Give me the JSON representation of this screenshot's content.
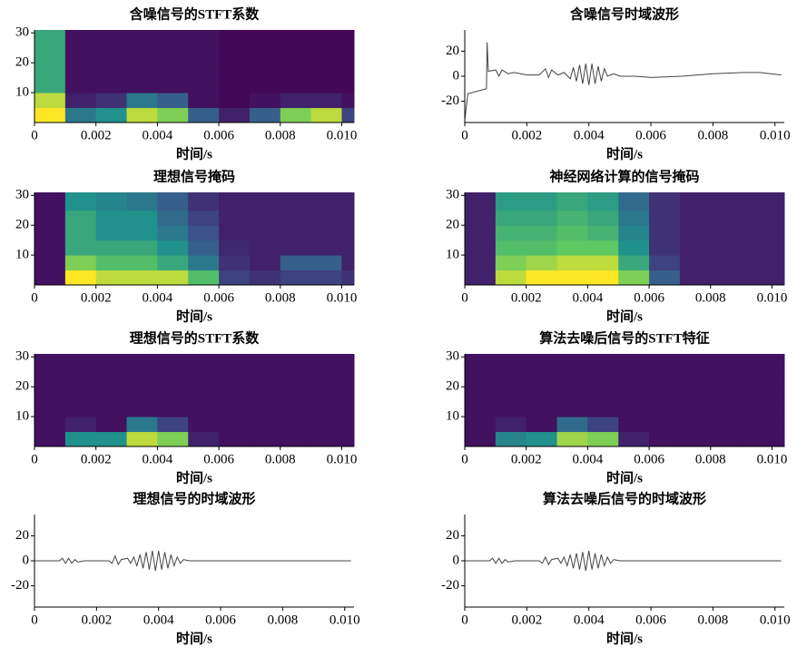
{
  "chart_data": [
    {
      "type": "heatmap",
      "title": "含噪信号的STFT系数",
      "xlabel": "时间/s",
      "colormap": "viridis",
      "xlim": [
        0,
        0.0104
      ],
      "ylim": [
        0,
        31
      ],
      "xticks": [
        0,
        0.002,
        0.004,
        0.006,
        0.008,
        {
          "value": 0.01,
          "label": "0.010"
        }
      ],
      "yticks": [
        10,
        20,
        30
      ],
      "xbins": [
        0,
        0.001,
        0.002,
        0.003,
        0.004,
        0.005,
        0.006,
        0.007,
        0.008,
        0.009,
        0.01,
        0.0104
      ],
      "ybins": [
        0,
        5,
        10,
        15,
        20,
        25,
        31
      ],
      "z": [
        [
          1,
          0.4,
          0.5,
          0.9,
          0.8,
          0.3,
          0.1,
          0.3,
          0.8,
          0.9,
          0.2
        ],
        [
          0.9,
          0.1,
          0.15,
          0.4,
          0.3,
          0.05,
          0.02,
          0.05,
          0.1,
          0.1,
          0.05
        ],
        [
          0.6,
          0.05,
          0.05,
          0.05,
          0.05,
          0.05,
          0.02,
          0.02,
          0.02,
          0.02,
          0.02
        ],
        [
          0.6,
          0.05,
          0.05,
          0.05,
          0.05,
          0.05,
          0.02,
          0.02,
          0.02,
          0.02,
          0.02
        ],
        [
          0.6,
          0.05,
          0.05,
          0.05,
          0.05,
          0.05,
          0.02,
          0.02,
          0.02,
          0.02,
          0.02
        ],
        [
          0.6,
          0.05,
          0.05,
          0.05,
          0.05,
          0.05,
          0.02,
          0.02,
          0.02,
          0.02,
          0.02
        ]
      ]
    },
    {
      "type": "line",
      "title": "含噪信号时域波形",
      "xlabel": "时间/s",
      "color": "#444444",
      "xlim": [
        0,
        0.0103
      ],
      "ylim": [
        -37,
        37
      ],
      "xticks": [
        0,
        0.002,
        0.004,
        0.006,
        0.008,
        {
          "value": 0.01,
          "label": "0.010"
        }
      ],
      "yticks": [
        -20,
        0,
        20
      ],
      "x": [
        0,
        0.0001,
        0.0007,
        0.00072,
        0.00076,
        0.001,
        0.0011,
        0.0012,
        0.0014,
        0.0016,
        0.002,
        0.0024,
        0.0026,
        0.0027,
        0.0028,
        0.003,
        0.0032,
        0.0034,
        0.0035,
        0.0036,
        0.0037,
        0.0038,
        0.0039,
        0.004,
        0.0041,
        0.0042,
        0.0043,
        0.0044,
        0.0045,
        0.0046,
        0.0048,
        0.005,
        0.0055,
        0.006,
        0.007,
        0.008,
        0.009,
        0.0095,
        0.0102
      ],
      "values": [
        -35,
        -14,
        -10,
        27,
        4,
        5,
        0,
        5,
        2,
        3,
        1,
        1,
        6,
        -1,
        5,
        1,
        3,
        -2,
        7,
        -4,
        9,
        -6,
        10,
        -7,
        10,
        -6,
        8,
        -4,
        6,
        0,
        2,
        0,
        0,
        -1,
        0,
        2,
        3,
        3,
        1
      ]
    },
    {
      "type": "heatmap",
      "title": "理想信号掩码",
      "xlabel": "时间/s",
      "colormap": "viridis",
      "xlim": [
        0,
        0.0104
      ],
      "ylim": [
        0,
        31
      ],
      "xticks": [
        0,
        0.002,
        0.004,
        0.006,
        0.008,
        {
          "value": 0.01,
          "label": "0.010"
        }
      ],
      "yticks": [
        10,
        20,
        30
      ],
      "xbins": [
        0,
        0.001,
        0.002,
        0.003,
        0.004,
        0.005,
        0.006,
        0.007,
        0.008,
        0.009,
        0.01,
        0.0104
      ],
      "ybins": [
        0,
        5,
        10,
        15,
        20,
        25,
        31
      ],
      "z": [
        [
          0.05,
          1,
          0.9,
          0.9,
          0.9,
          0.7,
          0.2,
          0.15,
          0.2,
          0.2,
          0.15
        ],
        [
          0.05,
          0.8,
          0.7,
          0.7,
          0.6,
          0.4,
          0.15,
          0.1,
          0.3,
          0.3,
          0.1
        ],
        [
          0.05,
          0.6,
          0.6,
          0.6,
          0.5,
          0.3,
          0.12,
          0.1,
          0.1,
          0.1,
          0.1
        ],
        [
          0.05,
          0.6,
          0.5,
          0.5,
          0.4,
          0.25,
          0.1,
          0.1,
          0.1,
          0.1,
          0.1
        ],
        [
          0.05,
          0.6,
          0.5,
          0.5,
          0.35,
          0.2,
          0.1,
          0.1,
          0.1,
          0.1,
          0.1
        ],
        [
          0.05,
          0.5,
          0.45,
          0.4,
          0.3,
          0.15,
          0.1,
          0.1,
          0.1,
          0.1,
          0.1
        ]
      ]
    },
    {
      "type": "heatmap",
      "title": "神经网络计算的信号掩码",
      "xlabel": "时间/s",
      "colormap": "viridis",
      "xlim": [
        0,
        0.0104
      ],
      "ylim": [
        0,
        31
      ],
      "xticks": [
        0,
        0.002,
        0.004,
        0.006,
        0.008,
        {
          "value": 0.01,
          "label": "0.010"
        }
      ],
      "yticks": [
        10,
        20,
        30
      ],
      "xbins": [
        0,
        0.001,
        0.002,
        0.003,
        0.004,
        0.005,
        0.006,
        0.007,
        0.008,
        0.009,
        0.01,
        0.0104
      ],
      "ybins": [
        0,
        5,
        10,
        15,
        20,
        25,
        31
      ],
      "z": [
        [
          0.1,
          0.9,
          1,
          1,
          1,
          0.8,
          0.3,
          0.1,
          0.1,
          0.1,
          0.1
        ],
        [
          0.1,
          0.8,
          0.85,
          0.9,
          0.9,
          0.6,
          0.2,
          0.1,
          0.1,
          0.1,
          0.1
        ],
        [
          0.1,
          0.7,
          0.7,
          0.75,
          0.75,
          0.5,
          0.15,
          0.1,
          0.1,
          0.1,
          0.1
        ],
        [
          0.1,
          0.65,
          0.65,
          0.7,
          0.65,
          0.45,
          0.15,
          0.1,
          0.1,
          0.1,
          0.1
        ],
        [
          0.1,
          0.6,
          0.6,
          0.65,
          0.6,
          0.4,
          0.15,
          0.1,
          0.1,
          0.1,
          0.1
        ],
        [
          0.1,
          0.55,
          0.55,
          0.6,
          0.55,
          0.35,
          0.15,
          0.1,
          0.1,
          0.1,
          0.1
        ]
      ]
    },
    {
      "type": "heatmap",
      "title": "理想信号的STFT系数",
      "xlabel": "时间/s",
      "colormap": "viridis",
      "xlim": [
        0,
        0.0104
      ],
      "ylim": [
        0,
        31
      ],
      "xticks": [
        0,
        0.002,
        0.004,
        0.006,
        0.008,
        {
          "value": 0.01,
          "label": "0.010"
        }
      ],
      "yticks": [
        10,
        20,
        30
      ],
      "xbins": [
        0,
        0.001,
        0.002,
        0.003,
        0.004,
        0.005,
        0.006,
        0.007,
        0.008,
        0.009,
        0.01,
        0.0104
      ],
      "ybins": [
        0,
        5,
        10,
        15,
        20,
        25,
        31
      ],
      "z": [
        [
          0.05,
          0.5,
          0.5,
          0.9,
          0.8,
          0.1,
          0.05,
          0.05,
          0.05,
          0.05,
          0.05
        ],
        [
          0.05,
          0.1,
          0.05,
          0.4,
          0.2,
          0.05,
          0.05,
          0.05,
          0.05,
          0.05,
          0.05
        ],
        [
          0.05,
          0.05,
          0.05,
          0.05,
          0.05,
          0.05,
          0.05,
          0.05,
          0.05,
          0.05,
          0.05
        ],
        [
          0.05,
          0.05,
          0.05,
          0.05,
          0.05,
          0.05,
          0.05,
          0.05,
          0.05,
          0.05,
          0.05
        ],
        [
          0.05,
          0.05,
          0.05,
          0.05,
          0.05,
          0.05,
          0.05,
          0.05,
          0.05,
          0.05,
          0.05
        ],
        [
          0.05,
          0.05,
          0.05,
          0.05,
          0.05,
          0.05,
          0.05,
          0.05,
          0.05,
          0.05,
          0.05
        ]
      ]
    },
    {
      "type": "heatmap",
      "title": "算法去噪后信号的STFT特征",
      "xlabel": "时间/s",
      "colormap": "viridis",
      "xlim": [
        0,
        0.0104
      ],
      "ylim": [
        0,
        31
      ],
      "xticks": [
        0,
        0.002,
        0.004,
        0.006,
        0.008,
        {
          "value": 0.01,
          "label": "0.010"
        }
      ],
      "yticks": [
        10,
        20,
        30
      ],
      "xbins": [
        0,
        0.001,
        0.002,
        0.003,
        0.004,
        0.005,
        0.006,
        0.007,
        0.008,
        0.009,
        0.01,
        0.0104
      ],
      "ybins": [
        0,
        5,
        10,
        15,
        20,
        25,
        31
      ],
      "z": [
        [
          0.05,
          0.45,
          0.5,
          0.85,
          0.8,
          0.1,
          0.05,
          0.05,
          0.05,
          0.05,
          0.05
        ],
        [
          0.05,
          0.1,
          0.05,
          0.35,
          0.2,
          0.05,
          0.05,
          0.05,
          0.05,
          0.05,
          0.05
        ],
        [
          0.05,
          0.05,
          0.05,
          0.05,
          0.05,
          0.05,
          0.05,
          0.05,
          0.05,
          0.05,
          0.05
        ],
        [
          0.05,
          0.05,
          0.05,
          0.05,
          0.05,
          0.05,
          0.05,
          0.05,
          0.05,
          0.05,
          0.05
        ],
        [
          0.05,
          0.05,
          0.05,
          0.05,
          0.05,
          0.05,
          0.05,
          0.05,
          0.05,
          0.05,
          0.05
        ],
        [
          0.05,
          0.05,
          0.05,
          0.05,
          0.05,
          0.05,
          0.05,
          0.05,
          0.05,
          0.05,
          0.05
        ]
      ]
    },
    {
      "type": "line",
      "title": "理想信号的时域波形",
      "xlabel": "时间/s",
      "color": "#444444",
      "xlim": [
        0,
        0.0103
      ],
      "ylim": [
        -37,
        37
      ],
      "xticks": [
        0,
        0.002,
        0.004,
        0.006,
        0.008,
        {
          "value": 0.01,
          "label": "0.010"
        }
      ],
      "yticks": [
        -20,
        0,
        20
      ],
      "x": [
        0,
        0.0008,
        0.0009,
        0.001,
        0.0011,
        0.0012,
        0.0013,
        0.0014,
        0.0016,
        0.0024,
        0.0025,
        0.0026,
        0.0027,
        0.0028,
        0.003,
        0.0031,
        0.0032,
        0.0033,
        0.0034,
        0.0035,
        0.0036,
        0.0037,
        0.0038,
        0.0039,
        0.004,
        0.0041,
        0.0042,
        0.0043,
        0.0044,
        0.0045,
        0.0046,
        0.0047,
        0.0048,
        0.005,
        0.0102
      ],
      "values": [
        0,
        0,
        2,
        -2,
        2,
        -2,
        1,
        -1,
        0,
        0,
        -2,
        4,
        -3,
        1,
        2,
        -2,
        3,
        -4,
        5,
        -6,
        7,
        -7,
        8,
        -8,
        8,
        -7,
        7,
        -6,
        5,
        -4,
        3,
        -2,
        1,
        0,
        0
      ]
    },
    {
      "type": "line",
      "title": "算法去噪后信号的时域波形",
      "xlabel": "时间/s",
      "color": "#444444",
      "xlim": [
        0,
        0.0103
      ],
      "ylim": [
        -37,
        37
      ],
      "xticks": [
        0,
        0.002,
        0.004,
        0.006,
        0.008,
        {
          "value": 0.01,
          "label": "0.010"
        }
      ],
      "yticks": [
        -20,
        0,
        20
      ],
      "x": [
        0,
        0.0008,
        0.0009,
        0.001,
        0.0011,
        0.0012,
        0.0013,
        0.0014,
        0.0016,
        0.0024,
        0.0025,
        0.0026,
        0.0027,
        0.0028,
        0.003,
        0.0031,
        0.0032,
        0.0033,
        0.0034,
        0.0035,
        0.0036,
        0.0037,
        0.0038,
        0.0039,
        0.004,
        0.0041,
        0.0042,
        0.0043,
        0.0044,
        0.0045,
        0.0046,
        0.0047,
        0.0048,
        0.005,
        0.0102
      ],
      "values": [
        0,
        0,
        2,
        -2,
        2,
        -2,
        1,
        -1,
        0,
        0,
        -2,
        3,
        -3,
        1,
        2,
        -2,
        3,
        -4,
        5,
        -6,
        6,
        -7,
        7,
        -8,
        8,
        -7,
        6,
        -6,
        5,
        -4,
        3,
        -2,
        1,
        0,
        0
      ]
    }
  ]
}
